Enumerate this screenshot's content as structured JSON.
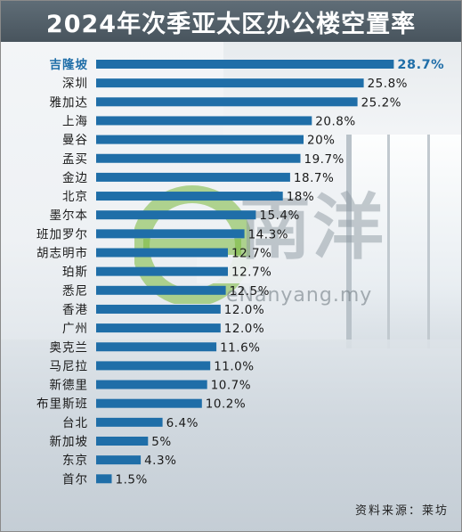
{
  "title": "2024年次季亚太区办公楼空置率",
  "source": "资料来源：莱坊",
  "watermark": {
    "chinese": "南洋",
    "url": "eNanyang.my"
  },
  "colors": {
    "bar": "#1f6ea8",
    "highlight_label": "#1f6ea8",
    "title_bg": "#515e68",
    "watermark_green": "#79b83a"
  },
  "chart_data": {
    "type": "bar",
    "orientation": "horizontal",
    "title": "2024年次季亚太区办公楼空置率",
    "categories": [
      "吉隆坡",
      "深圳",
      "雅加达",
      "上海",
      "曼谷",
      "孟买",
      "金边",
      "北京",
      "墨尔本",
      "班加罗尔",
      "胡志明市",
      "珀斯",
      "悉尼",
      "香港",
      "广州",
      "奥克兰",
      "马尼拉",
      "新德里",
      "布里斯班",
      "台北",
      "新加坡",
      "东京",
      "首尔"
    ],
    "values": [
      28.7,
      25.8,
      25.2,
      20.8,
      20,
      19.7,
      18.7,
      18,
      15.4,
      14.3,
      12.7,
      12.7,
      12.5,
      12.0,
      12.0,
      11.6,
      11.0,
      10.7,
      10.2,
      6.4,
      5,
      4.3,
      1.5
    ],
    "value_labels": [
      "28.7%",
      "25.8%",
      "25.2%",
      "20.8%",
      "20%",
      "19.7%",
      "18.7%",
      "18%",
      "15.4%",
      "14.3%",
      "12.7%",
      "12.7%",
      "12.5%",
      "12.0%",
      "12.0%",
      "11.6%",
      "11.0%",
      "10.7%",
      "10.2%",
      "6.4%",
      "5%",
      "4.3%",
      "1.5%"
    ],
    "highlight": "吉隆坡",
    "unit": "%",
    "grid": false,
    "legend": "none"
  }
}
